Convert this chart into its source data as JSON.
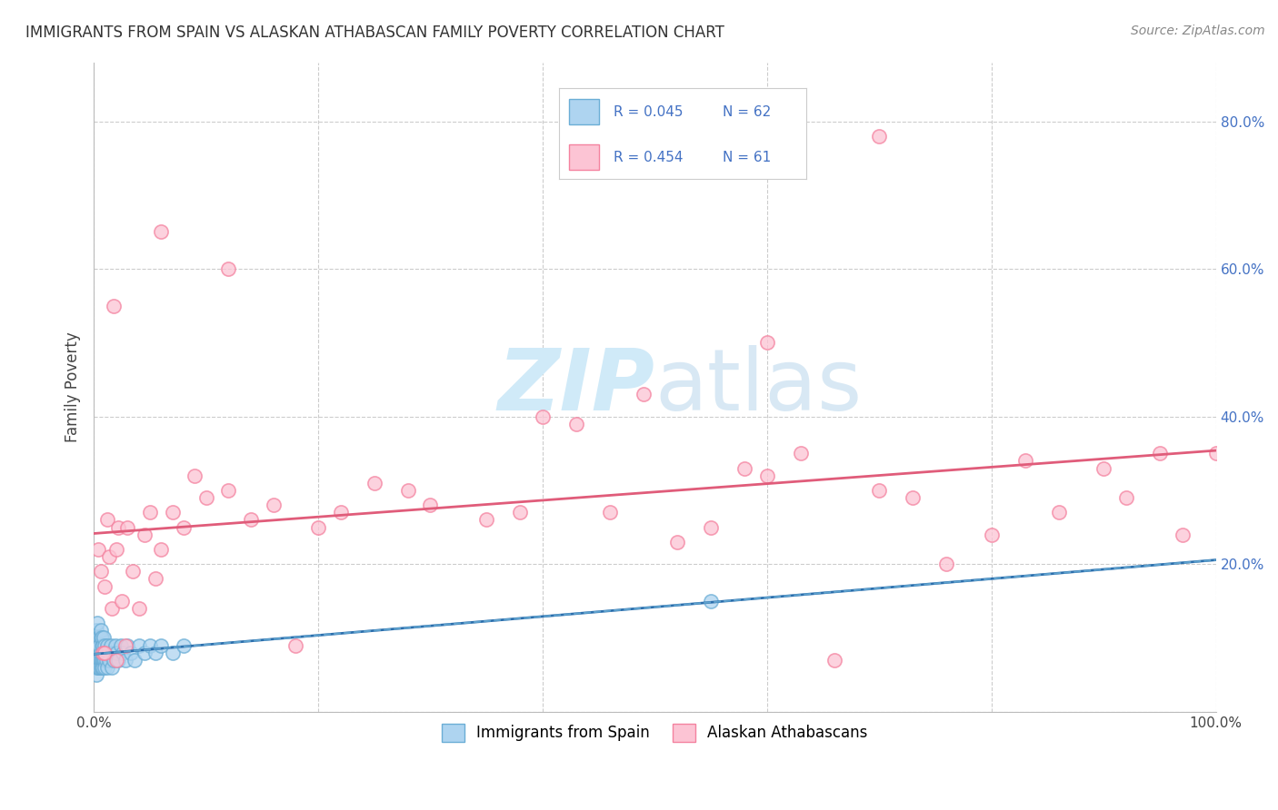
{
  "title": "IMMIGRANTS FROM SPAIN VS ALASKAN ATHABASCAN FAMILY POVERTY CORRELATION CHART",
  "source": "Source: ZipAtlas.com",
  "ylabel": "Family Poverty",
  "xlim": [
    0,
    1.0
  ],
  "ylim": [
    0,
    0.88
  ],
  "xticks": [
    0.0,
    0.2,
    0.4,
    0.6,
    0.8,
    1.0
  ],
  "xticklabels": [
    "0.0%",
    "",
    "",
    "",
    "",
    "100.0%"
  ],
  "yticks": [
    0.0,
    0.2,
    0.4,
    0.6,
    0.8
  ],
  "yticklabels": [
    "",
    "20.0%",
    "40.0%",
    "60.0%",
    "80.0%"
  ],
  "legend_r1": "R = 0.045",
  "legend_n1": "N = 62",
  "legend_r2": "R = 0.454",
  "legend_n2": "N = 61",
  "color_blue_face": "#aed4f0",
  "color_blue_edge": "#6baed6",
  "color_pink_face": "#fcc4d4",
  "color_pink_edge": "#f4829f",
  "color_line_blue": "#2c6fad",
  "color_line_pink": "#e05c7a",
  "watermark_color": "#d0eaf8",
  "grid_color": "#cccccc",
  "tick_color": "#4472c4",
  "title_color": "#333333",
  "source_color": "#888888",
  "spain_x": [
    0.001,
    0.001,
    0.002,
    0.002,
    0.002,
    0.003,
    0.003,
    0.003,
    0.003,
    0.004,
    0.004,
    0.004,
    0.004,
    0.005,
    0.005,
    0.005,
    0.005,
    0.006,
    0.006,
    0.006,
    0.006,
    0.006,
    0.007,
    0.007,
    0.007,
    0.007,
    0.008,
    0.008,
    0.008,
    0.009,
    0.009,
    0.009,
    0.01,
    0.01,
    0.01,
    0.011,
    0.011,
    0.012,
    0.012,
    0.013,
    0.014,
    0.015,
    0.016,
    0.017,
    0.018,
    0.019,
    0.02,
    0.022,
    0.024,
    0.026,
    0.028,
    0.03,
    0.033,
    0.036,
    0.04,
    0.045,
    0.05,
    0.055,
    0.06,
    0.07,
    0.08,
    0.55
  ],
  "spain_y": [
    0.06,
    0.09,
    0.05,
    0.08,
    0.11,
    0.07,
    0.09,
    0.12,
    0.06,
    0.08,
    0.1,
    0.06,
    0.09,
    0.07,
    0.1,
    0.06,
    0.09,
    0.07,
    0.1,
    0.06,
    0.08,
    0.11,
    0.07,
    0.09,
    0.06,
    0.1,
    0.07,
    0.09,
    0.06,
    0.08,
    0.07,
    0.1,
    0.07,
    0.09,
    0.06,
    0.08,
    0.07,
    0.09,
    0.06,
    0.08,
    0.07,
    0.09,
    0.06,
    0.08,
    0.07,
    0.09,
    0.08,
    0.07,
    0.09,
    0.08,
    0.07,
    0.09,
    0.08,
    0.07,
    0.09,
    0.08,
    0.09,
    0.08,
    0.09,
    0.08,
    0.09,
    0.15
  ],
  "alaska_x": [
    0.004,
    0.006,
    0.008,
    0.01,
    0.012,
    0.014,
    0.016,
    0.018,
    0.02,
    0.022,
    0.025,
    0.028,
    0.03,
    0.035,
    0.04,
    0.045,
    0.05,
    0.055,
    0.06,
    0.07,
    0.08,
    0.09,
    0.1,
    0.12,
    0.14,
    0.16,
    0.18,
    0.2,
    0.22,
    0.25,
    0.28,
    0.3,
    0.35,
    0.38,
    0.4,
    0.43,
    0.46,
    0.49,
    0.52,
    0.55,
    0.58,
    0.6,
    0.63,
    0.66,
    0.7,
    0.73,
    0.76,
    0.8,
    0.83,
    0.86,
    0.9,
    0.92,
    0.95,
    0.97,
    1.0,
    0.01,
    0.02,
    0.06,
    0.12,
    0.6,
    0.7
  ],
  "alaska_y": [
    0.22,
    0.19,
    0.08,
    0.17,
    0.26,
    0.21,
    0.14,
    0.55,
    0.22,
    0.25,
    0.15,
    0.09,
    0.25,
    0.19,
    0.14,
    0.24,
    0.27,
    0.18,
    0.22,
    0.27,
    0.25,
    0.32,
    0.29,
    0.3,
    0.26,
    0.28,
    0.09,
    0.25,
    0.27,
    0.31,
    0.3,
    0.28,
    0.26,
    0.27,
    0.4,
    0.39,
    0.27,
    0.43,
    0.23,
    0.25,
    0.33,
    0.32,
    0.35,
    0.07,
    0.3,
    0.29,
    0.2,
    0.24,
    0.34,
    0.27,
    0.33,
    0.29,
    0.35,
    0.24,
    0.35,
    0.08,
    0.07,
    0.65,
    0.6,
    0.5,
    0.78
  ]
}
